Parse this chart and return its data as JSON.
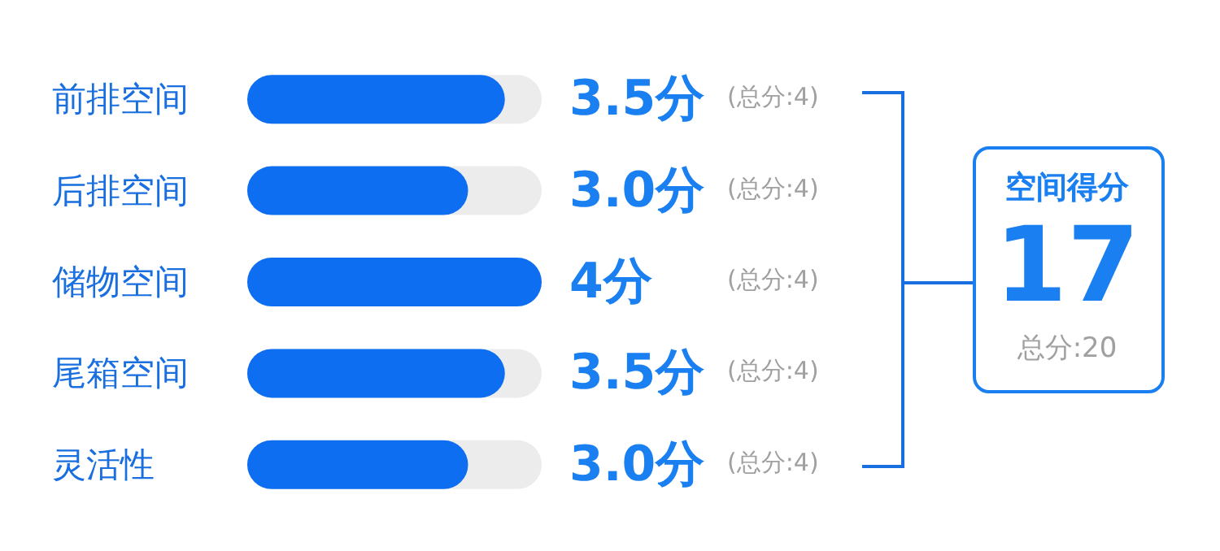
{
  "chart_data": {
    "type": "bar",
    "orientation": "horizontal",
    "categories": [
      "前排空间",
      "后排空间",
      "储物空间",
      "尾箱空间",
      "灵活性"
    ],
    "values": [
      3.5,
      3.0,
      4,
      3.5,
      3.0
    ],
    "value_labels": [
      "3.5分",
      "3.0分",
      "4分",
      "3.5分",
      "3.0分"
    ],
    "color": "#0d6ef2",
    "xlim": [
      0,
      4
    ],
    "tick_labels": "y",
    "annotations": [
      "(总分:4)",
      "(总分:4)",
      "(总分:4)",
      "(总分:4)",
      "(总分:4)",
      "空间得分",
      "17",
      "总分:20"
    ]
  }
}
